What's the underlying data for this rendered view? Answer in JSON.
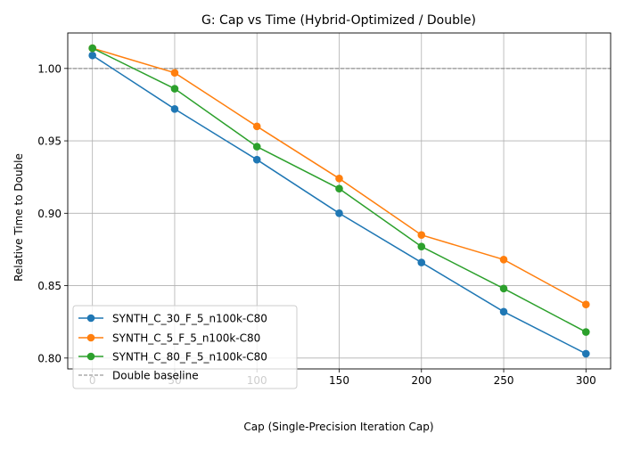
{
  "chart_data": {
    "type": "line",
    "title": "G: Cap vs Time (Hybrid-Optimized / Double)",
    "xlabel": "Cap (Single-Precision Iteration Cap)",
    "ylabel": "Relative Time to Double",
    "x": [
      0,
      50,
      100,
      150,
      200,
      250,
      300
    ],
    "xlim": [
      -15,
      315
    ],
    "ylim": [
      0.7925,
      1.0245
    ],
    "xticks": [
      "0",
      "50",
      "100",
      "150",
      "200",
      "250",
      "300"
    ],
    "yticks": [
      "0.80",
      "0.85",
      "0.90",
      "0.95",
      "1.00"
    ],
    "grid": true,
    "legend_position": "lower-left",
    "series": [
      {
        "name": "SYNTH_C_30_F_5_n100k-C80",
        "color": "#1f77b4",
        "marker": "circle",
        "values": [
          1.009,
          0.972,
          0.937,
          0.9,
          0.866,
          0.832,
          0.803
        ]
      },
      {
        "name": "SYNTH_C_5_F_5_n100k-C80",
        "color": "#ff7f0e",
        "marker": "circle",
        "values": [
          1.014,
          0.997,
          0.96,
          0.924,
          0.885,
          0.868,
          0.837
        ]
      },
      {
        "name": "SYNTH_C_80_F_5_n100k-C80",
        "color": "#2ca02c",
        "marker": "circle",
        "values": [
          1.014,
          0.986,
          0.946,
          0.917,
          0.877,
          0.848,
          0.818
        ]
      }
    ],
    "baseline": {
      "name": "Double baseline",
      "value": 1.0,
      "color": "#808080",
      "style": "dashed"
    }
  }
}
